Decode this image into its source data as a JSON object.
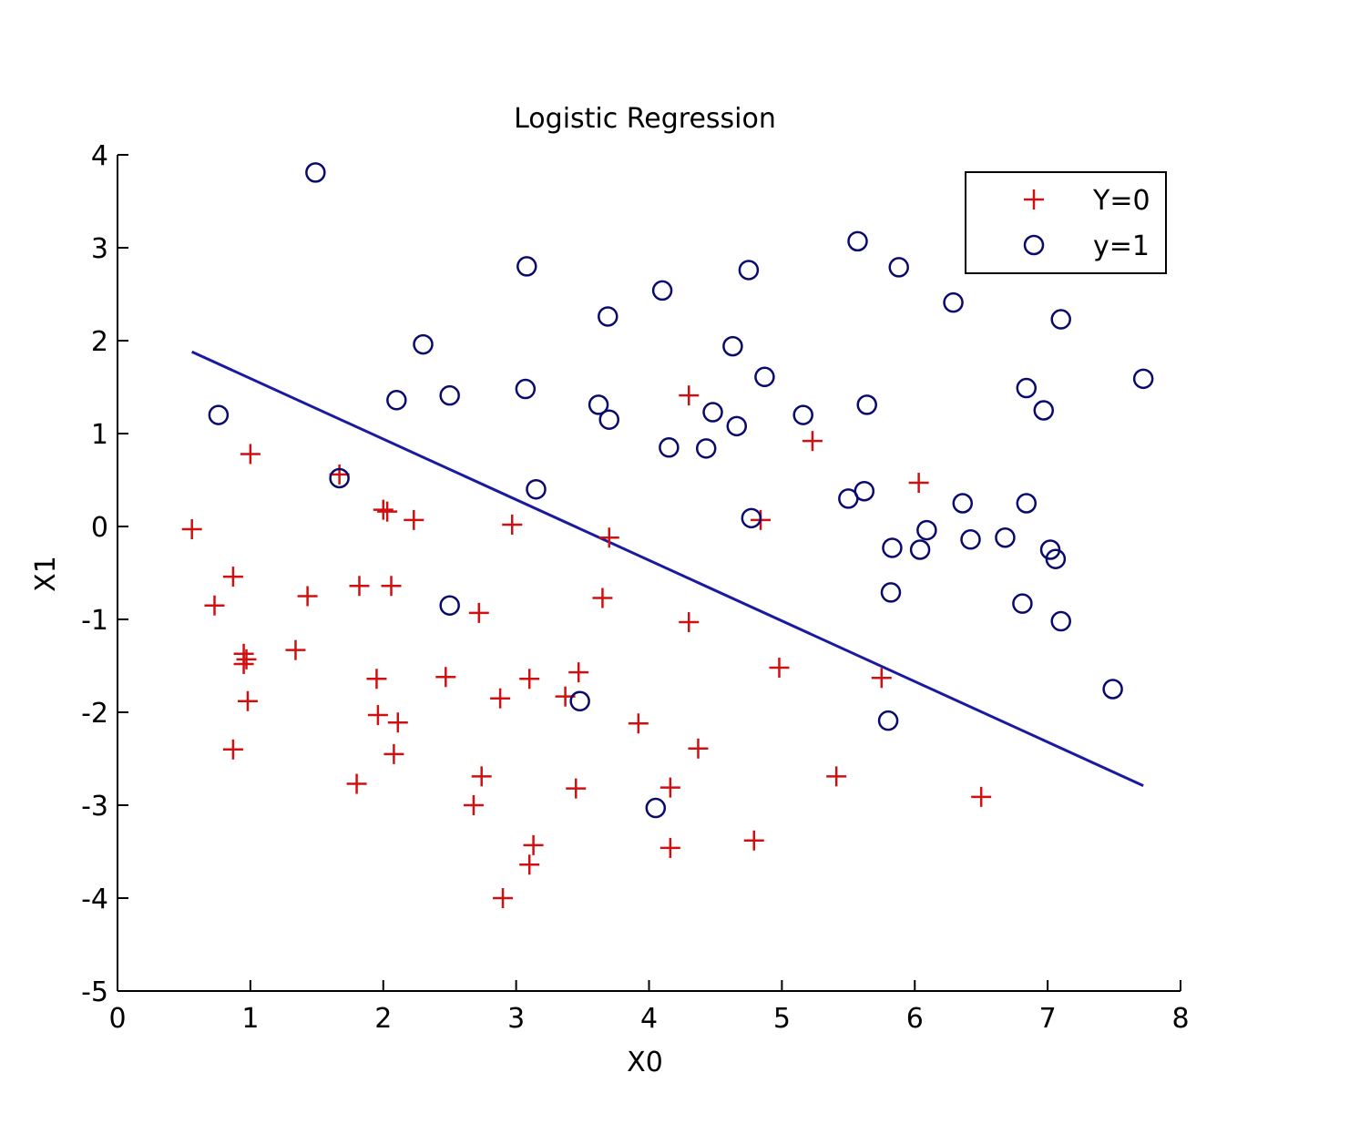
{
  "chart_data": {
    "type": "scatter",
    "title": "Logistic Regression",
    "xlabel": "X0",
    "ylabel": "X1",
    "xlim": [
      0,
      8
    ],
    "ylim": [
      -5,
      4
    ],
    "xticks": [
      "0",
      "1",
      "2",
      "3",
      "4",
      "5",
      "6",
      "7",
      "8"
    ],
    "yticks": [
      "-5",
      "-4",
      "-3",
      "-2",
      "-1",
      "0",
      "1",
      "2",
      "3",
      "4"
    ],
    "grid": false,
    "legend_position": "top-right",
    "series": [
      {
        "name": "Y=0",
        "marker": "plus",
        "color": "#d01010",
        "points": [
          [
            0.56,
            -0.03
          ],
          [
            0.73,
            -0.85
          ],
          [
            0.87,
            -0.54
          ],
          [
            0.87,
            -2.4
          ],
          [
            0.95,
            -1.37
          ],
          [
            0.95,
            -1.48
          ],
          [
            0.97,
            -1.43
          ],
          [
            0.98,
            -1.88
          ],
          [
            1.0,
            0.78
          ],
          [
            1.34,
            -1.33
          ],
          [
            1.43,
            -0.75
          ],
          [
            1.67,
            0.56
          ],
          [
            1.8,
            -2.77
          ],
          [
            1.82,
            -0.64
          ],
          [
            1.95,
            -1.64
          ],
          [
            1.96,
            -2.03
          ],
          [
            2.0,
            0.18
          ],
          [
            2.03,
            0.16
          ],
          [
            2.06,
            -0.64
          ],
          [
            2.08,
            -2.45
          ],
          [
            2.11,
            -2.11
          ],
          [
            2.23,
            0.07
          ],
          [
            2.47,
            -1.62
          ],
          [
            2.72,
            -0.93
          ],
          [
            2.68,
            -3.0
          ],
          [
            2.74,
            -2.69
          ],
          [
            2.88,
            -1.85
          ],
          [
            2.9,
            -4.0
          ],
          [
            2.97,
            0.02
          ],
          [
            3.1,
            -1.64
          ],
          [
            3.1,
            -3.64
          ],
          [
            3.13,
            -3.43
          ],
          [
            3.37,
            -1.83
          ],
          [
            3.45,
            -2.82
          ],
          [
            3.47,
            -1.57
          ],
          [
            3.65,
            -0.77
          ],
          [
            3.7,
            -0.12
          ],
          [
            3.92,
            -2.12
          ],
          [
            4.16,
            -2.81
          ],
          [
            4.16,
            -3.46
          ],
          [
            4.3,
            -1.03
          ],
          [
            4.3,
            1.41
          ],
          [
            4.37,
            -2.39
          ],
          [
            4.79,
            -3.38
          ],
          [
            4.84,
            0.07
          ],
          [
            4.98,
            -1.52
          ],
          [
            5.23,
            0.92
          ],
          [
            5.41,
            -2.69
          ],
          [
            5.75,
            -1.63
          ],
          [
            6.03,
            0.47
          ],
          [
            6.5,
            -2.91
          ]
        ]
      },
      {
        "name": "y=1",
        "marker": "circle",
        "color": "#0a0a6e",
        "points": [
          [
            0.76,
            1.2
          ],
          [
            1.49,
            3.81
          ],
          [
            1.67,
            0.52
          ],
          [
            2.1,
            1.36
          ],
          [
            2.3,
            1.96
          ],
          [
            2.5,
            1.41
          ],
          [
            2.5,
            -0.85
          ],
          [
            3.07,
            1.48
          ],
          [
            3.08,
            2.8
          ],
          [
            3.15,
            0.4
          ],
          [
            3.48,
            -1.88
          ],
          [
            3.62,
            1.31
          ],
          [
            3.69,
            2.26
          ],
          [
            3.7,
            1.15
          ],
          [
            4.05,
            -3.03
          ],
          [
            4.1,
            2.54
          ],
          [
            4.15,
            0.85
          ],
          [
            4.43,
            0.84
          ],
          [
            4.48,
            1.23
          ],
          [
            4.63,
            1.94
          ],
          [
            4.66,
            1.08
          ],
          [
            4.75,
            2.76
          ],
          [
            4.77,
            0.09
          ],
          [
            4.87,
            1.61
          ],
          [
            5.16,
            1.2
          ],
          [
            5.5,
            0.3
          ],
          [
            5.57,
            3.07
          ],
          [
            5.62,
            0.38
          ],
          [
            5.64,
            1.31
          ],
          [
            5.8,
            -2.09
          ],
          [
            5.82,
            -0.71
          ],
          [
            5.83,
            -0.23
          ],
          [
            5.88,
            2.79
          ],
          [
            6.04,
            -0.25
          ],
          [
            6.09,
            -0.04
          ],
          [
            6.29,
            2.41
          ],
          [
            6.36,
            0.25
          ],
          [
            6.42,
            -0.14
          ],
          [
            6.68,
            -0.12
          ],
          [
            6.81,
            -0.83
          ],
          [
            6.84,
            0.25
          ],
          [
            6.84,
            1.49
          ],
          [
            6.97,
            1.25
          ],
          [
            7.02,
            -0.25
          ],
          [
            7.06,
            -0.35
          ],
          [
            7.1,
            -1.02
          ],
          [
            7.1,
            2.23
          ],
          [
            7.49,
            -1.75
          ],
          [
            7.72,
            1.59
          ]
        ]
      }
    ],
    "decision_boundary": {
      "color": "#1a1aa0",
      "x": [
        0.56,
        7.72
      ],
      "y": [
        1.88,
        -2.79
      ]
    }
  }
}
